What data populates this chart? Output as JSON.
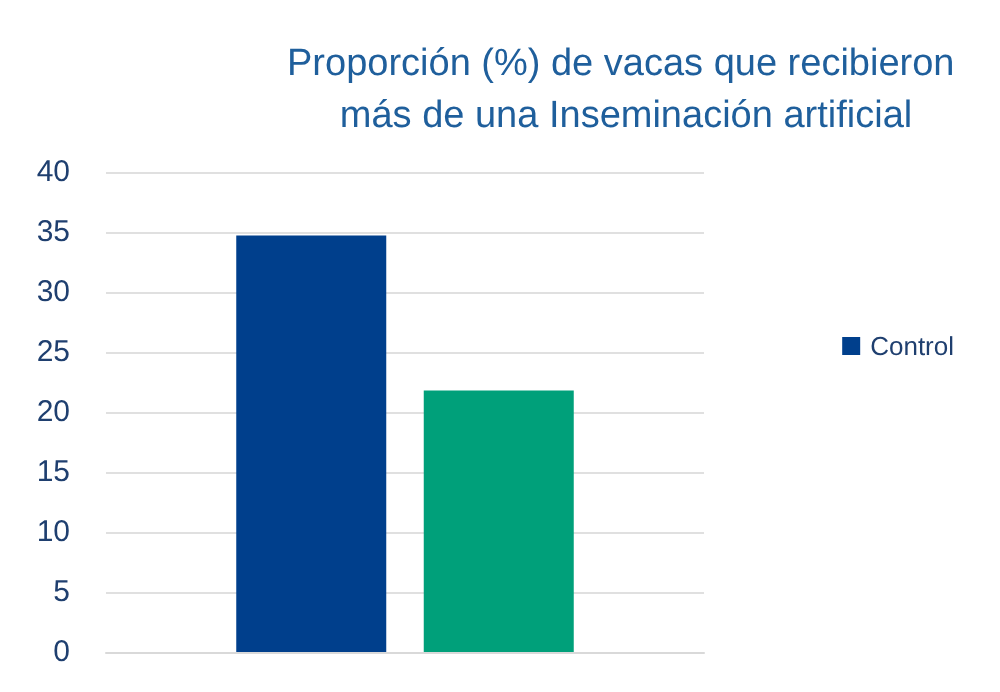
{
  "chart_data": {
    "type": "bar",
    "title": "Proporción (%) de vacas que recibieron más de una Inseminación artificial",
    "categories": [
      null
    ],
    "series": [
      {
        "name": "Control",
        "color": "#003f8c",
        "values": [
          34.7
        ]
      },
      {
        "color": "#00a07a",
        "values": [
          21.8
        ]
      }
    ],
    "ylim": [
      0,
      40
    ],
    "yticks": [
      0,
      5,
      10,
      15,
      20,
      25,
      30,
      35,
      40
    ],
    "grid": "y",
    "legend": "right"
  }
}
